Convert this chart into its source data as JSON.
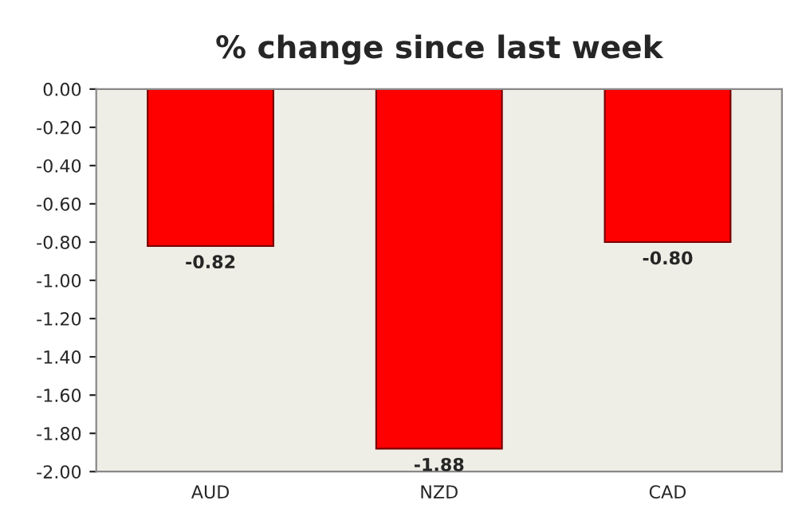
{
  "chart_data": {
    "type": "bar",
    "title": "% change since last week",
    "categories": [
      "AUD",
      "NZD",
      "CAD"
    ],
    "values": [
      -0.82,
      -1.88,
      -0.8
    ],
    "value_labels": [
      "-0.82",
      "-1.88",
      "-0.80"
    ],
    "color": "#ff0000",
    "ylim": [
      -2.0,
      0.0
    ],
    "yticks": [
      {
        "value": 0.0,
        "label": "0.00"
      },
      {
        "value": -0.2,
        "label": "-0.20"
      },
      {
        "value": -0.4,
        "label": "-0.40"
      },
      {
        "value": -0.6,
        "label": "-0.60"
      },
      {
        "value": -0.8,
        "label": "-0.80"
      },
      {
        "value": -1.0,
        "label": "-1.00"
      },
      {
        "value": -1.2,
        "label": "-1.20"
      },
      {
        "value": -1.4,
        "label": "-1.40"
      },
      {
        "value": -1.6,
        "label": "-1.60"
      },
      {
        "value": -1.8,
        "label": "-1.80"
      },
      {
        "value": -2.0,
        "label": "-2.00"
      }
    ]
  }
}
